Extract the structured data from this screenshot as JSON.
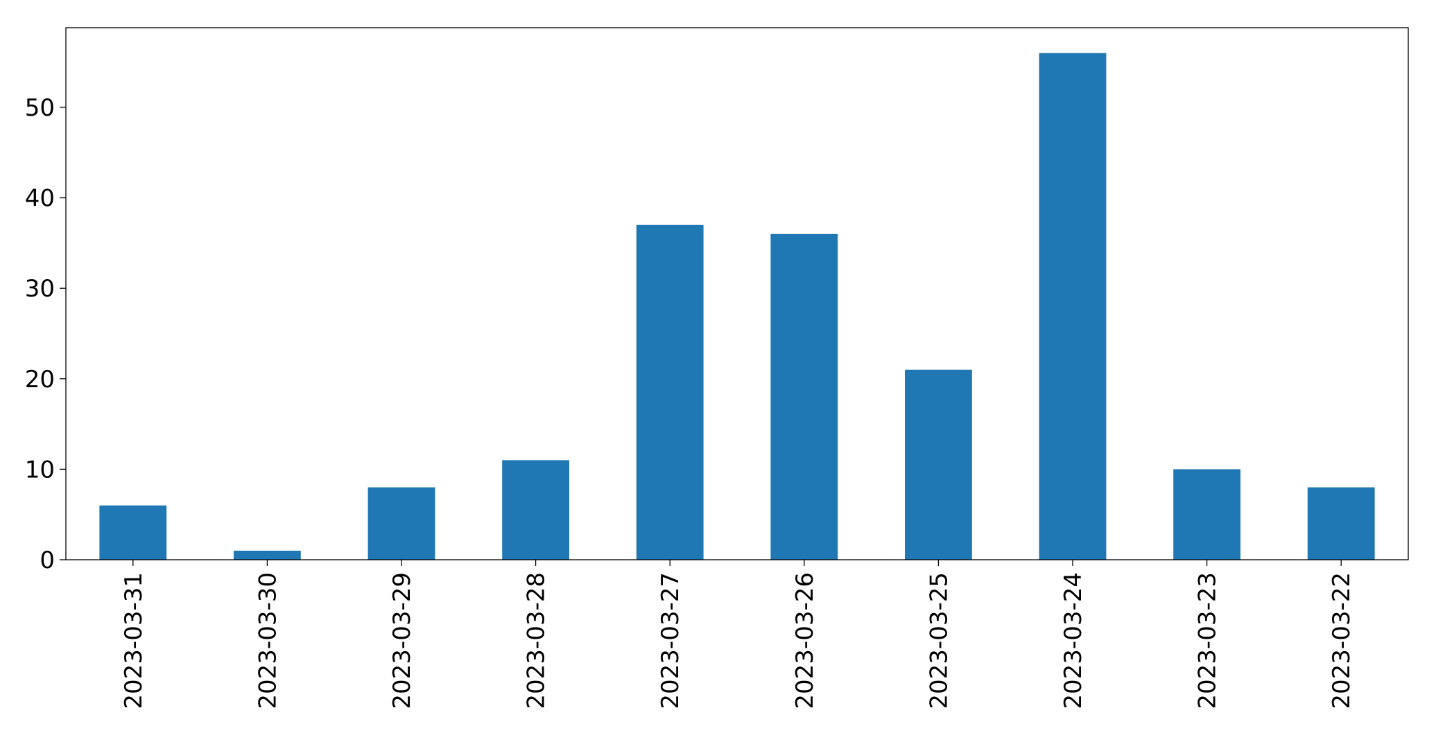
{
  "chart_data": {
    "type": "bar",
    "categories": [
      "2023-03-31",
      "2023-03-30",
      "2023-03-29",
      "2023-03-28",
      "2023-03-27",
      "2023-03-26",
      "2023-03-25",
      "2023-03-24",
      "2023-03-23",
      "2023-03-22"
    ],
    "values": [
      6,
      1,
      8,
      11,
      37,
      36,
      21,
      56,
      10,
      8
    ],
    "color": "#1f77b4",
    "ylim": [
      0,
      58.8
    ],
    "yticks": [
      0,
      10,
      20,
      30,
      40,
      50
    ],
    "grid": false
  }
}
